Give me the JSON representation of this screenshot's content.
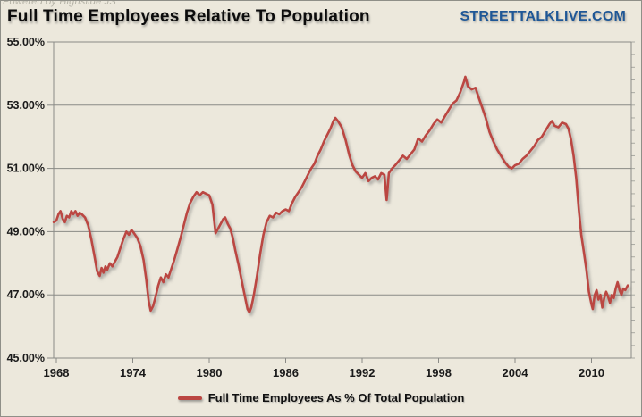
{
  "header": {
    "powered_by": "Powered by Highslide JS",
    "title": "Full Time Employees Relative To Population",
    "brand": "STREETTALKLIVE.COM"
  },
  "colors": {
    "background": "#ECE8DC",
    "line": "#BB4642",
    "line_shadow": "#6e6e6e",
    "brand_blue": "#1F5796",
    "grid": "#8a8a86",
    "minor_tick": "#a9a9a2",
    "axis_text": "#1a1a1a"
  },
  "legend": {
    "label": "Full Time Employees As % Of Total Population"
  },
  "chart_data": {
    "type": "line",
    "title": "Full Time Employees Relative To Population",
    "xlabel": "",
    "ylabel": "",
    "xlim": [
      1967.8,
      2013.2
    ],
    "ylim": [
      45,
      55
    ],
    "xticks": [
      1968,
      1974,
      1980,
      1986,
      1992,
      1998,
      2004,
      2010
    ],
    "yticks": [
      45,
      47,
      49,
      51,
      53,
      55
    ],
    "ytick_format": "percent2",
    "minor_ytick_step": 0.4,
    "grid": "horizontal",
    "legend_position": "bottom",
    "series": [
      {
        "name": "Full Time Employees As % Of Total Population",
        "color": "#BB4642",
        "points": [
          [
            1967.8,
            49.3
          ],
          [
            1968.0,
            49.35
          ],
          [
            1968.17,
            49.55
          ],
          [
            1968.33,
            49.65
          ],
          [
            1968.5,
            49.4
          ],
          [
            1968.67,
            49.3
          ],
          [
            1968.83,
            49.5
          ],
          [
            1969.0,
            49.45
          ],
          [
            1969.17,
            49.65
          ],
          [
            1969.33,
            49.55
          ],
          [
            1969.5,
            49.65
          ],
          [
            1969.67,
            49.5
          ],
          [
            1969.83,
            49.6
          ],
          [
            1970.0,
            49.55
          ],
          [
            1970.25,
            49.45
          ],
          [
            1970.5,
            49.2
          ],
          [
            1970.75,
            48.75
          ],
          [
            1971.0,
            48.2
          ],
          [
            1971.2,
            47.75
          ],
          [
            1971.4,
            47.6
          ],
          [
            1971.55,
            47.85
          ],
          [
            1971.7,
            47.7
          ],
          [
            1971.85,
            47.9
          ],
          [
            1972.0,
            47.8
          ],
          [
            1972.2,
            48.0
          ],
          [
            1972.4,
            47.9
          ],
          [
            1972.6,
            48.05
          ],
          [
            1972.8,
            48.2
          ],
          [
            1973.0,
            48.45
          ],
          [
            1973.25,
            48.75
          ],
          [
            1973.5,
            49.0
          ],
          [
            1973.7,
            48.9
          ],
          [
            1973.9,
            49.05
          ],
          [
            1974.1,
            48.95
          ],
          [
            1974.35,
            48.8
          ],
          [
            1974.6,
            48.55
          ],
          [
            1974.85,
            48.1
          ],
          [
            1975.05,
            47.5
          ],
          [
            1975.25,
            46.8
          ],
          [
            1975.4,
            46.5
          ],
          [
            1975.6,
            46.65
          ],
          [
            1975.8,
            46.95
          ],
          [
            1976.0,
            47.3
          ],
          [
            1976.2,
            47.55
          ],
          [
            1976.4,
            47.4
          ],
          [
            1976.6,
            47.65
          ],
          [
            1976.8,
            47.55
          ],
          [
            1977.0,
            47.8
          ],
          [
            1977.25,
            48.1
          ],
          [
            1977.5,
            48.45
          ],
          [
            1977.75,
            48.8
          ],
          [
            1978.0,
            49.2
          ],
          [
            1978.25,
            49.6
          ],
          [
            1978.5,
            49.9
          ],
          [
            1978.75,
            50.1
          ],
          [
            1979.0,
            50.25
          ],
          [
            1979.25,
            50.15
          ],
          [
            1979.5,
            50.25
          ],
          [
            1979.75,
            50.2
          ],
          [
            1980.0,
            50.15
          ],
          [
            1980.25,
            49.85
          ],
          [
            1980.5,
            48.95
          ],
          [
            1980.7,
            49.1
          ],
          [
            1980.9,
            49.25
          ],
          [
            1981.1,
            49.4
          ],
          [
            1981.25,
            49.45
          ],
          [
            1981.45,
            49.25
          ],
          [
            1981.65,
            49.1
          ],
          [
            1981.85,
            48.8
          ],
          [
            1982.05,
            48.4
          ],
          [
            1982.3,
            47.95
          ],
          [
            1982.55,
            47.45
          ],
          [
            1982.8,
            46.95
          ],
          [
            1983.0,
            46.55
          ],
          [
            1983.15,
            46.45
          ],
          [
            1983.3,
            46.6
          ],
          [
            1983.5,
            47.0
          ],
          [
            1983.75,
            47.6
          ],
          [
            1984.0,
            48.3
          ],
          [
            1984.25,
            48.9
          ],
          [
            1984.5,
            49.3
          ],
          [
            1984.75,
            49.5
          ],
          [
            1985.0,
            49.45
          ],
          [
            1985.25,
            49.6
          ],
          [
            1985.5,
            49.55
          ],
          [
            1985.75,
            49.65
          ],
          [
            1986.0,
            49.7
          ],
          [
            1986.25,
            49.65
          ],
          [
            1986.5,
            49.9
          ],
          [
            1986.75,
            50.1
          ],
          [
            1987.0,
            50.25
          ],
          [
            1987.25,
            50.4
          ],
          [
            1987.5,
            50.6
          ],
          [
            1987.75,
            50.8
          ],
          [
            1988.0,
            51.0
          ],
          [
            1988.25,
            51.15
          ],
          [
            1988.5,
            51.4
          ],
          [
            1988.75,
            51.6
          ],
          [
            1989.0,
            51.85
          ],
          [
            1989.25,
            52.05
          ],
          [
            1989.5,
            52.25
          ],
          [
            1989.75,
            52.5
          ],
          [
            1989.9,
            52.6
          ],
          [
            1990.1,
            52.5
          ],
          [
            1990.4,
            52.3
          ],
          [
            1990.7,
            51.9
          ],
          [
            1991.0,
            51.4
          ],
          [
            1991.25,
            51.1
          ],
          [
            1991.5,
            50.9
          ],
          [
            1991.75,
            50.8
          ],
          [
            1992.0,
            50.7
          ],
          [
            1992.25,
            50.85
          ],
          [
            1992.5,
            50.6
          ],
          [
            1992.75,
            50.7
          ],
          [
            1993.0,
            50.75
          ],
          [
            1993.25,
            50.65
          ],
          [
            1993.5,
            50.85
          ],
          [
            1993.75,
            50.8
          ],
          [
            1993.92,
            50.0
          ],
          [
            1994.1,
            50.85
          ],
          [
            1994.35,
            51.0
          ],
          [
            1994.6,
            51.1
          ],
          [
            1994.9,
            51.25
          ],
          [
            1995.2,
            51.4
          ],
          [
            1995.5,
            51.3
          ],
          [
            1995.8,
            51.45
          ],
          [
            1996.1,
            51.6
          ],
          [
            1996.4,
            51.95
          ],
          [
            1996.7,
            51.85
          ],
          [
            1997.0,
            52.05
          ],
          [
            1997.3,
            52.2
          ],
          [
            1997.6,
            52.4
          ],
          [
            1997.9,
            52.55
          ],
          [
            1998.2,
            52.45
          ],
          [
            1998.5,
            52.65
          ],
          [
            1998.8,
            52.85
          ],
          [
            1999.1,
            53.05
          ],
          [
            1999.4,
            53.15
          ],
          [
            1999.7,
            53.4
          ],
          [
            2000.0,
            53.75
          ],
          [
            2000.1,
            53.9
          ],
          [
            2000.3,
            53.6
          ],
          [
            2000.6,
            53.5
          ],
          [
            2000.9,
            53.55
          ],
          [
            2001.1,
            53.3
          ],
          [
            2001.4,
            52.95
          ],
          [
            2001.7,
            52.6
          ],
          [
            2002.0,
            52.15
          ],
          [
            2002.3,
            51.85
          ],
          [
            2002.6,
            51.6
          ],
          [
            2002.9,
            51.4
          ],
          [
            2003.2,
            51.2
          ],
          [
            2003.5,
            51.05
          ],
          [
            2003.75,
            51.0
          ],
          [
            2004.0,
            51.1
          ],
          [
            2004.3,
            51.15
          ],
          [
            2004.6,
            51.3
          ],
          [
            2004.9,
            51.4
          ],
          [
            2005.2,
            51.55
          ],
          [
            2005.5,
            51.7
          ],
          [
            2005.8,
            51.9
          ],
          [
            2006.1,
            52.0
          ],
          [
            2006.4,
            52.2
          ],
          [
            2006.7,
            52.4
          ],
          [
            2006.9,
            52.5
          ],
          [
            2007.1,
            52.35
          ],
          [
            2007.4,
            52.3
          ],
          [
            2007.7,
            52.45
          ],
          [
            2008.0,
            52.4
          ],
          [
            2008.2,
            52.25
          ],
          [
            2008.4,
            51.9
          ],
          [
            2008.6,
            51.4
          ],
          [
            2008.8,
            50.7
          ],
          [
            2009.0,
            49.7
          ],
          [
            2009.2,
            48.9
          ],
          [
            2009.4,
            48.35
          ],
          [
            2009.6,
            47.8
          ],
          [
            2009.8,
            47.1
          ],
          [
            2010.0,
            46.7
          ],
          [
            2010.1,
            46.55
          ],
          [
            2010.25,
            47.0
          ],
          [
            2010.4,
            47.15
          ],
          [
            2010.55,
            46.85
          ],
          [
            2010.7,
            47.0
          ],
          [
            2010.85,
            46.6
          ],
          [
            2011.0,
            46.9
          ],
          [
            2011.15,
            47.1
          ],
          [
            2011.3,
            46.95
          ],
          [
            2011.45,
            46.75
          ],
          [
            2011.6,
            47.0
          ],
          [
            2011.75,
            46.9
          ],
          [
            2011.9,
            47.2
          ],
          [
            2012.05,
            47.4
          ],
          [
            2012.2,
            47.15
          ],
          [
            2012.35,
            47.0
          ],
          [
            2012.5,
            47.2
          ],
          [
            2012.65,
            47.15
          ],
          [
            2012.85,
            47.3
          ]
        ]
      }
    ]
  }
}
